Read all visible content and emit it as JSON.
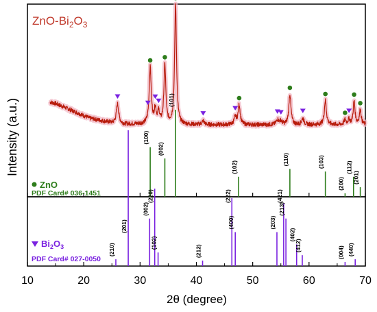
{
  "chart_data": {
    "type": "line",
    "title": "ZnO-Bi2O3",
    "xlabel": "2θ (degree)",
    "ylabel": "Intensity (a.u.)",
    "xlim": [
      10,
      70
    ],
    "xticks": [
      10,
      20,
      30,
      40,
      50,
      60,
      70
    ],
    "grid": false,
    "colors": {
      "pattern_line": "#b81c0c",
      "pattern_fill": "#f2b8c6",
      "zno": "#2e7d1c",
      "bi2o3": "#7a22e0",
      "title": "#c0392b",
      "axis": "#000000"
    },
    "xrd_pattern": {
      "name": "ZnO-Bi2O3",
      "description_points_x": [
        10,
        11,
        12,
        13,
        14,
        15,
        16,
        17,
        18,
        19,
        20,
        21,
        22,
        23,
        24,
        25,
        26,
        27,
        28,
        29,
        30,
        31,
        32,
        33,
        34,
        35,
        36,
        37,
        38,
        39,
        40,
        41,
        42,
        43,
        44,
        45,
        46,
        47,
        48,
        49,
        50,
        51,
        52,
        53,
        54,
        55,
        56,
        57,
        58,
        59,
        60,
        61,
        62,
        63,
        64,
        65,
        66,
        67,
        68,
        69,
        70
      ],
      "background_relative": [
        0.3,
        0.29,
        0.27,
        0.25,
        0.23,
        0.22,
        0.2,
        0.18,
        0.16,
        0.14,
        0.12,
        0.1,
        0.09,
        0.08,
        0.07,
        0.06,
        0.055,
        0.05,
        0.05,
        0.05,
        0.05,
        0.05,
        0.05,
        0.05,
        0.05,
        0.048,
        0.045,
        0.045,
        0.045,
        0.045,
        0.045,
        0.045,
        0.045,
        0.045,
        0.045,
        0.045,
        0.045,
        0.045,
        0.045,
        0.045,
        0.045,
        0.045,
        0.045,
        0.045,
        0.045,
        0.045,
        0.045,
        0.045,
        0.045,
        0.045,
        0.045,
        0.045,
        0.045,
        0.045,
        0.045,
        0.045,
        0.045,
        0.045,
        0.045,
        0.045,
        0.045
      ],
      "peaks": [
        {
          "x": 26.0,
          "h": 0.16,
          "w": 0.25,
          "phase": "Bi2O3"
        },
        {
          "x": 31.8,
          "h": 0.46,
          "w": 0.22,
          "phase": "ZnO"
        },
        {
          "x": 32.7,
          "h": 0.12,
          "w": 0.2,
          "phase": "Bi2O3"
        },
        {
          "x": 33.3,
          "h": 0.09,
          "w": 0.2,
          "phase": "Bi2O3"
        },
        {
          "x": 34.4,
          "h": 0.48,
          "w": 0.2,
          "phase": "ZnO"
        },
        {
          "x": 36.3,
          "h": 0.98,
          "w": 0.2,
          "phase": "ZnO"
        },
        {
          "x": 41.2,
          "h": 0.03,
          "w": 0.25,
          "phase": "Bi2O3"
        },
        {
          "x": 46.9,
          "h": 0.06,
          "w": 0.25,
          "phase": "Bi2O3"
        },
        {
          "x": 47.6,
          "h": 0.16,
          "w": 0.22,
          "phase": "ZnO"
        },
        {
          "x": 54.4,
          "h": 0.04,
          "w": 0.25,
          "phase": "Bi2O3"
        },
        {
          "x": 55.0,
          "h": 0.03,
          "w": 0.25,
          "phase": "Bi2O3"
        },
        {
          "x": 56.6,
          "h": 0.25,
          "w": 0.22,
          "phase": "ZnO"
        },
        {
          "x": 58.9,
          "h": 0.05,
          "w": 0.25,
          "phase": "Bi2O3"
        },
        {
          "x": 62.9,
          "h": 0.2,
          "w": 0.22,
          "phase": "ZnO"
        },
        {
          "x": 66.4,
          "h": 0.04,
          "w": 0.2,
          "phase": "ZnO"
        },
        {
          "x": 67.1,
          "h": 0.04,
          "w": 0.2,
          "phase": "Bi2O3"
        },
        {
          "x": 68.0,
          "h": 0.19,
          "w": 0.2,
          "phase": "ZnO"
        },
        {
          "x": 69.1,
          "h": 0.12,
          "w": 0.2,
          "phase": "ZnO"
        }
      ]
    },
    "pattern_markers": {
      "zno_x": [
        31.8,
        34.4,
        36.3,
        47.6,
        56.6,
        62.9,
        66.4,
        68.0,
        69.1
      ],
      "bi2o3_x": [
        26.0,
        31.4,
        32.7,
        33.3,
        41.2,
        46.9,
        54.4,
        55.0,
        58.9,
        67.1
      ]
    },
    "zno_reference": {
      "label": "ZnO",
      "card": "PDF Card# 036-1451",
      "lines": [
        {
          "x": 31.8,
          "intensity": 0.57,
          "hkl": "(100)"
        },
        {
          "x": 34.4,
          "intensity": 0.44,
          "hkl": "(002)"
        },
        {
          "x": 36.3,
          "intensity": 1.0,
          "hkl": "(101)"
        },
        {
          "x": 47.5,
          "intensity": 0.23,
          "hkl": "(102)"
        },
        {
          "x": 56.6,
          "intensity": 0.32,
          "hkl": "(110)"
        },
        {
          "x": 62.9,
          "intensity": 0.29,
          "hkl": "(103)"
        },
        {
          "x": 66.4,
          "intensity": 0.04,
          "hkl": "(200)"
        },
        {
          "x": 67.9,
          "intensity": 0.23,
          "hkl": "(112)"
        },
        {
          "x": 69.1,
          "intensity": 0.11,
          "hkl": "(201)"
        }
      ]
    },
    "bi2o3_reference": {
      "label": "Bi2O3",
      "card": "PDF Card# 027-0050",
      "lines": [
        {
          "x": 25.7,
          "intensity": 0.05,
          "hkl": "(210)"
        },
        {
          "x": 27.9,
          "intensity": 1.0,
          "hkl": "(201)"
        },
        {
          "x": 31.7,
          "intensity": 0.35,
          "hkl": "(002)"
        },
        {
          "x": 32.6,
          "intensity": 0.57,
          "hkl": "(220)"
        },
        {
          "x": 33.2,
          "intensity": 0.1,
          "hkl": "(102)"
        },
        {
          "x": 41.1,
          "intensity": 0.04,
          "hkl": "(212)"
        },
        {
          "x": 46.3,
          "intensity": 0.5,
          "hkl": "(222)"
        },
        {
          "x": 46.9,
          "intensity": 0.25,
          "hkl": "(400)"
        },
        {
          "x": 54.3,
          "intensity": 0.25,
          "hkl": "(203)"
        },
        {
          "x": 55.5,
          "intensity": 0.46,
          "hkl": "(421)"
        },
        {
          "x": 55.9,
          "intensity": 0.35,
          "hkl": "(213)"
        },
        {
          "x": 57.8,
          "intensity": 0.16,
          "hkl": "(402)"
        },
        {
          "x": 58.8,
          "intensity": 0.08,
          "hkl": "(412)"
        },
        {
          "x": 66.4,
          "intensity": 0.03,
          "hkl": "(004)"
        },
        {
          "x": 68.2,
          "intensity": 0.05,
          "hkl": "(440)"
        }
      ]
    }
  },
  "legend": {
    "zno_label": "ZnO",
    "zno_card": "PDF Card# 036-1451",
    "bi2o3_label_main": "Bi",
    "bi2o3_label_sub1": "2",
    "bi2o3_label_mid": "O",
    "bi2o3_label_sub2": "3",
    "bi2o3_card": "PDF Card# 027-0050"
  },
  "title_parts": {
    "main": "ZnO-Bi",
    "sub1": "2",
    "mid": "O",
    "sub2": "3"
  }
}
